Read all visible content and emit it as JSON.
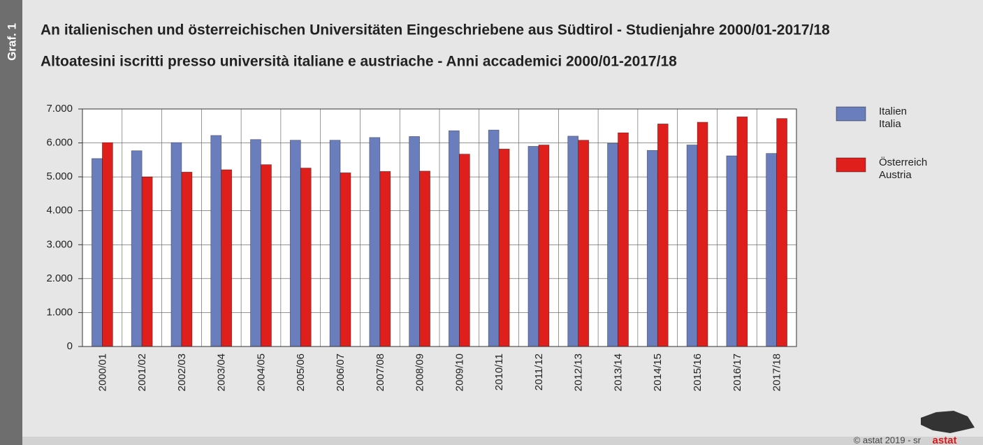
{
  "chart_data": {
    "type": "bar",
    "label": "Graf. 1",
    "title": "An italienischen und österreichischen Universitäten Eingeschriebene aus Südtirol - Studienjahre 2000/01-2017/18",
    "subtitle": "Altoatesini iscritti presso università italiane e austriache - Anni accademici 2000/01-2017/18",
    "categories": [
      "2000/01",
      "2001/02",
      "2002/03",
      "2003/04",
      "2004/05",
      "2005/06",
      "2006/07",
      "2007/08",
      "2008/09",
      "2009/10",
      "2010/11",
      "2011/12",
      "2012/13",
      "2013/14",
      "2014/15",
      "2015/16",
      "2016/17",
      "2017/18"
    ],
    "series": [
      {
        "name": "Italien",
        "name_it": "Italia",
        "color": "#6a7dbd",
        "values": [
          5540,
          5770,
          6010,
          6220,
          6100,
          6080,
          6080,
          6160,
          6190,
          6360,
          6380,
          5900,
          6200,
          5990,
          5780,
          5940,
          5620,
          5690
        ]
      },
      {
        "name": "Österreich",
        "name_it": "Austria",
        "color": "#de1f1b",
        "values": [
          6010,
          5000,
          5140,
          5210,
          5360,
          5260,
          5120,
          5160,
          5170,
          5670,
          5820,
          5940,
          6080,
          6300,
          6560,
          6610,
          6770,
          6720
        ]
      }
    ],
    "ylim": [
      0,
      7000
    ],
    "yticks": [
      0,
      {
        "value": 1000,
        "label": "1.000"
      },
      {
        "value": 2000,
        "label": "2.000"
      },
      {
        "value": 3000,
        "label": "3.000"
      },
      {
        "value": 4000,
        "label": "4.000"
      },
      {
        "value": 5000,
        "label": "5.000"
      },
      {
        "value": 6000,
        "label": "6.000"
      },
      {
        "value": 7000,
        "label": "7.000"
      }
    ],
    "grid": true,
    "legend": "right",
    "footer": "© astat 2019 - sr",
    "logo": "astat"
  }
}
